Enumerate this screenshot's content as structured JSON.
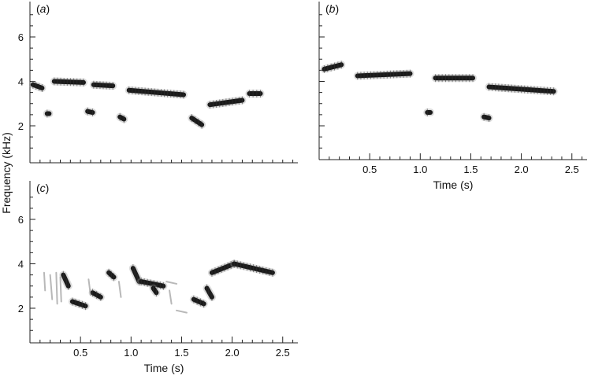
{
  "figure": {
    "ylabel": "Frequency (kHz)"
  },
  "chart_data": [
    {
      "type": "scatter",
      "panel": "a",
      "panel_label": "a",
      "xlabel": "",
      "ylabel": "Frequency (kHz)",
      "xlim": [
        0.0,
        2.65
      ],
      "ylim": [
        0.4,
        7.5
      ],
      "x_ticks_major": [],
      "x_ticks_minor": [
        0.1,
        0.2,
        0.3,
        0.4,
        0.5,
        0.6,
        0.7,
        0.8,
        0.9,
        1.0,
        1.1,
        1.2,
        1.3,
        1.4,
        1.5,
        1.6,
        1.7,
        1.8,
        1.9,
        2.0,
        2.1,
        2.2,
        2.3,
        2.4,
        2.5,
        2.6
      ],
      "y_ticks": [
        2,
        4,
        6
      ],
      "y_tick_labels": [
        "2",
        "4",
        "6"
      ],
      "show_left_axis": true,
      "series": [
        {
          "notes": [
            {
              "x0": 0.03,
              "x1": 0.12,
              "y0": 3.85,
              "y1": 3.7
            },
            {
              "x0": 0.24,
              "x1": 0.53,
              "y0": 4.0,
              "y1": 3.95
            },
            {
              "x0": 0.63,
              "x1": 0.82,
              "y0": 3.85,
              "y1": 3.8
            },
            {
              "x0": 0.98,
              "x1": 1.52,
              "y0": 3.6,
              "y1": 3.4
            },
            {
              "x0": 1.78,
              "x1": 2.1,
              "y0": 2.95,
              "y1": 3.15
            },
            {
              "x0": 2.17,
              "x1": 2.28,
              "y0": 3.45,
              "y1": 3.45
            },
            {
              "x0": 0.17,
              "x1": 0.19,
              "y0": 2.55,
              "y1": 2.55
            },
            {
              "x0": 0.57,
              "x1": 0.62,
              "y0": 2.65,
              "y1": 2.6
            },
            {
              "x0": 0.89,
              "x1": 0.93,
              "y0": 2.4,
              "y1": 2.3
            },
            {
              "x0": 1.6,
              "x1": 1.7,
              "y0": 2.35,
              "y1": 2.05
            }
          ]
        }
      ]
    },
    {
      "type": "scatter",
      "panel": "b",
      "panel_label": "b",
      "xlabel": "Time  (s)",
      "ylabel": "",
      "xlim": [
        0.0,
        2.65
      ],
      "ylim": [
        0.4,
        7.5
      ],
      "x_ticks_major": [
        0.5,
        1.0,
        1.5,
        2.0,
        2.5
      ],
      "x_tick_labels": [
        "0.5",
        "1.0",
        "1.5",
        "2.0",
        "2.5"
      ],
      "x_ticks_minor": [
        0.1,
        0.2,
        0.3,
        0.4,
        0.6,
        0.7,
        0.8,
        0.9,
        1.1,
        1.2,
        1.3,
        1.4,
        1.6,
        1.7,
        1.8,
        1.9,
        2.1,
        2.2,
        2.3,
        2.4,
        2.6
      ],
      "y_ticks": [
        2,
        4,
        6
      ],
      "y_tick_labels": [],
      "show_left_axis": true,
      "series": [
        {
          "notes": [
            {
              "x0": 0.05,
              "x1": 0.22,
              "y0": 4.55,
              "y1": 4.75
            },
            {
              "x0": 0.38,
              "x1": 0.9,
              "y0": 4.25,
              "y1": 4.35
            },
            {
              "x0": 1.15,
              "x1": 1.52,
              "y0": 4.15,
              "y1": 4.15
            },
            {
              "x0": 1.68,
              "x1": 2.32,
              "y0": 3.75,
              "y1": 3.55
            },
            {
              "x0": 1.07,
              "x1": 1.1,
              "y0": 2.6,
              "y1": 2.6
            },
            {
              "x0": 1.63,
              "x1": 1.68,
              "y0": 2.4,
              "y1": 2.35
            }
          ]
        }
      ]
    },
    {
      "type": "scatter",
      "panel": "c",
      "panel_label": "c",
      "xlabel": "Time  (s)",
      "ylabel": "",
      "xlim": [
        0.0,
        2.65
      ],
      "ylim": [
        0.4,
        7.5
      ],
      "x_ticks_major": [
        0.5,
        1.0,
        1.5,
        2.0,
        2.5
      ],
      "x_tick_labels": [
        "0.5",
        "1.0",
        "1.5",
        "2.0",
        "2.5"
      ],
      "x_ticks_minor": [
        0.1,
        0.2,
        0.3,
        0.4,
        0.6,
        0.7,
        0.8,
        0.9,
        1.1,
        1.2,
        1.3,
        1.4,
        1.6,
        1.7,
        1.8,
        1.9,
        2.1,
        2.2,
        2.3,
        2.4,
        2.6
      ],
      "y_ticks": [
        2,
        4,
        6
      ],
      "y_tick_labels": [
        "2",
        "4",
        "6"
      ],
      "show_left_axis": true,
      "series": [
        {
          "notes": [
            {
              "x0": 0.33,
              "x1": 0.38,
              "y0": 3.5,
              "y1": 3.0
            },
            {
              "x0": 0.42,
              "x1": 0.55,
              "y0": 2.3,
              "y1": 2.1
            },
            {
              "x0": 0.62,
              "x1": 0.7,
              "y0": 2.7,
              "y1": 2.5
            },
            {
              "x0": 0.78,
              "x1": 0.83,
              "y0": 3.6,
              "y1": 3.4
            },
            {
              "x0": 1.02,
              "x1": 1.08,
              "y0": 3.8,
              "y1": 3.2
            },
            {
              "x0": 1.1,
              "x1": 1.32,
              "y0": 3.2,
              "y1": 3.0
            },
            {
              "x0": 1.22,
              "x1": 1.25,
              "y0": 2.9,
              "y1": 2.7
            },
            {
              "x0": 1.62,
              "x1": 1.72,
              "y0": 2.4,
              "y1": 2.2
            },
            {
              "x0": 1.75,
              "x1": 1.8,
              "y0": 2.9,
              "y1": 2.5
            },
            {
              "x0": 1.8,
              "x1": 2.02,
              "y0": 3.6,
              "y1": 4.0
            },
            {
              "x0": 2.02,
              "x1": 2.4,
              "y0": 4.0,
              "y1": 3.6
            }
          ]
        },
        {
          "faint_traces": [
            {
              "x0": 0.14,
              "x1": 0.15,
              "y0": 3.6,
              "y1": 2.8
            },
            {
              "x0": 0.2,
              "x1": 0.22,
              "y0": 3.5,
              "y1": 2.4
            },
            {
              "x0": 0.26,
              "x1": 0.27,
              "y0": 3.6,
              "y1": 2.2
            },
            {
              "x0": 0.3,
              "x1": 0.31,
              "y0": 3.4,
              "y1": 2.3
            },
            {
              "x0": 0.58,
              "x1": 0.6,
              "y0": 3.3,
              "y1": 2.6
            },
            {
              "x0": 0.88,
              "x1": 0.9,
              "y0": 3.2,
              "y1": 2.5
            },
            {
              "x0": 1.45,
              "x1": 1.55,
              "y0": 1.9,
              "y1": 1.8
            },
            {
              "x0": 1.38,
              "x1": 1.4,
              "y0": 2.8,
              "y1": 2.2
            },
            {
              "x0": 1.35,
              "x1": 1.45,
              "y0": 3.2,
              "y1": 3.1
            }
          ]
        }
      ]
    }
  ]
}
